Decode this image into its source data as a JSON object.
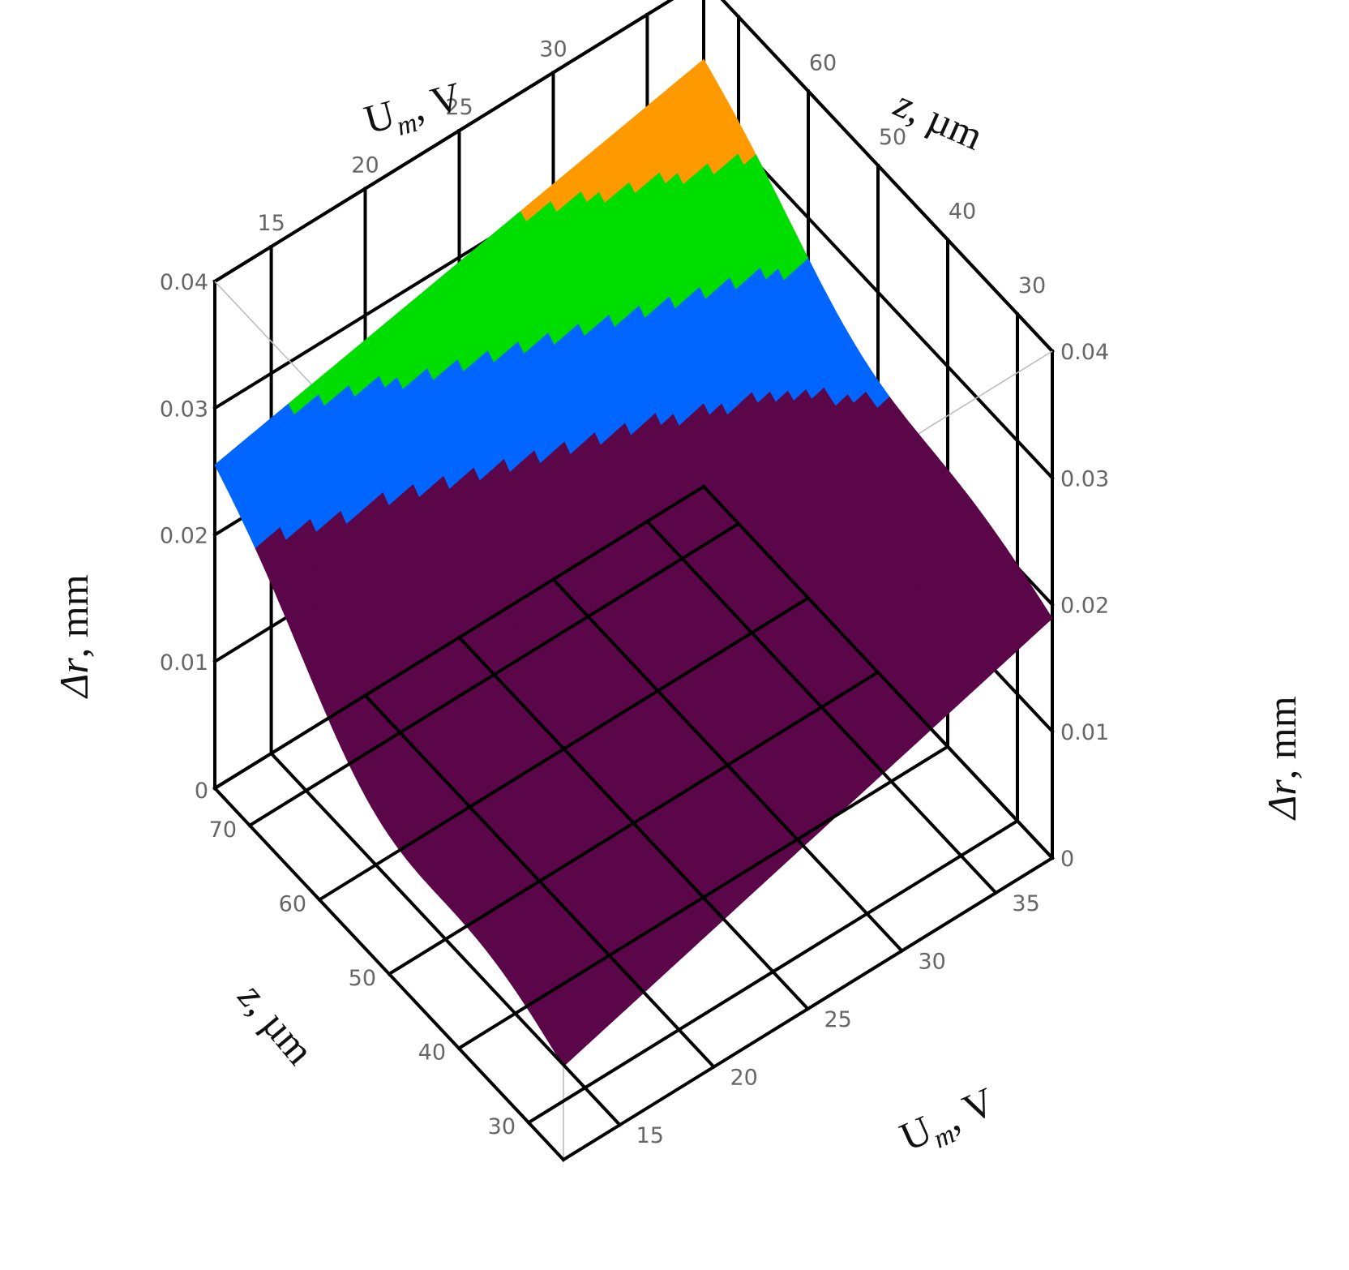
{
  "chart_data": {
    "type": "surface3d",
    "title": "",
    "x_axis": {
      "label_main": "U",
      "label_sub": "m",
      "label_unit": ", V",
      "ticks": [
        15,
        20,
        25,
        30,
        35
      ],
      "range": [
        12,
        38
      ]
    },
    "z_axis": {
      "label_main": "z",
      "label_unit": ", µm",
      "ticks": [
        30,
        40,
        50,
        60,
        70
      ],
      "range": [
        25,
        75
      ]
    },
    "y_axis": {
      "label_main": "Δr",
      "label_unit": ", mm",
      "ticks": [
        0,
        0.01,
        0.02,
        0.03,
        0.04
      ],
      "tick_labels": [
        "0",
        "0.01",
        "0.02",
        "0.03",
        "0.04"
      ],
      "range": [
        0,
        0.04
      ]
    },
    "surface_corners": [
      {
        "U": 12,
        "z": 75,
        "dr": 0.026
      },
      {
        "U": 38,
        "z": 75,
        "dr": 0.034
      },
      {
        "U": 38,
        "z": 25,
        "dr": 0.019
      },
      {
        "U": 12,
        "z": 25,
        "dr": 0.0075
      }
    ],
    "surface_levels": [
      0.0225,
      0.0265,
      0.0305,
      0.034
    ],
    "colors": {
      "band_lowest": "#5a0648",
      "band_low": "#0066ff",
      "band_mid": "#00dd00",
      "band_high": "#ff9900",
      "band_highest": "#b01c1c"
    },
    "grid": true
  }
}
